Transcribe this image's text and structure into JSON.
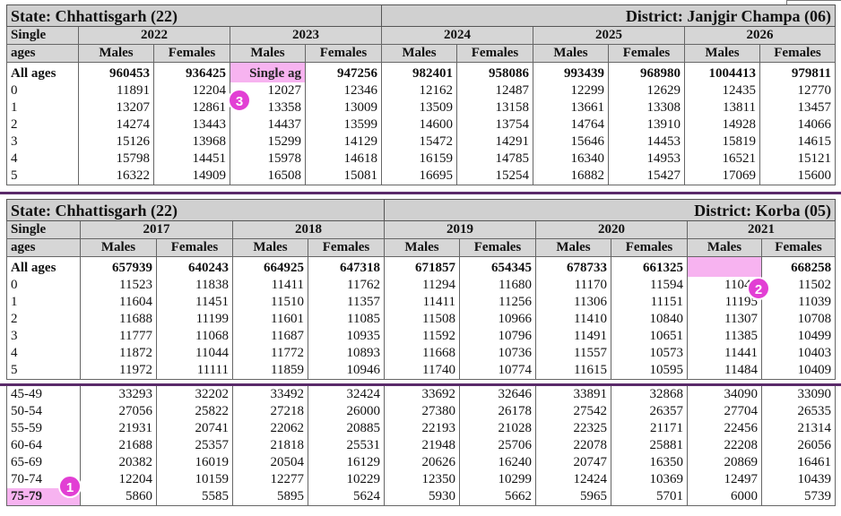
{
  "section1": {
    "state": "State: Chhattisgarh (22)",
    "district": "District: Janjgir Champa (06)",
    "single": "Single",
    "ages": "ages",
    "years": [
      "2022",
      "2023",
      "2024",
      "2025",
      "2026"
    ],
    "males": "Males",
    "females": "Females",
    "rows": [
      [
        "All ages",
        "960453",
        "936425",
        "Single ag",
        "947256",
        "982401",
        "958086",
        "993439",
        "968980",
        "1004413",
        "979811"
      ],
      [
        "0",
        "11891",
        "12204",
        "12027",
        "12346",
        "12162",
        "12487",
        "12299",
        "12629",
        "12435",
        "12770"
      ],
      [
        "1",
        "13207",
        "12861",
        "13358",
        "13009",
        "13509",
        "13158",
        "13661",
        "13308",
        "13811",
        "13457"
      ],
      [
        "2",
        "14274",
        "13443",
        "14437",
        "13599",
        "14600",
        "13754",
        "14764",
        "13910",
        "14928",
        "14066"
      ],
      [
        "3",
        "15126",
        "13968",
        "15299",
        "14129",
        "15472",
        "14291",
        "15646",
        "14453",
        "15819",
        "14615"
      ],
      [
        "4",
        "15798",
        "14451",
        "15978",
        "14618",
        "16159",
        "14785",
        "16340",
        "14953",
        "16521",
        "15121"
      ],
      [
        "5",
        "16322",
        "14909",
        "16508",
        "15081",
        "16695",
        "15254",
        "16882",
        "15427",
        "17069",
        "15600"
      ]
    ]
  },
  "section2": {
    "state": "State: Chhattisgarh (22)",
    "district": "District: Korba (05)",
    "single": "Single",
    "ages": "ages",
    "years": [
      "2017",
      "2018",
      "2019",
      "2020",
      "2021"
    ],
    "males": "Males",
    "females": "Females",
    "rows": [
      [
        "All ages",
        "657939",
        "640243",
        "664925",
        "647318",
        "671857",
        "654345",
        "678733",
        "661325",
        "",
        "668258"
      ],
      [
        "0",
        "11523",
        "11838",
        "11411",
        "11762",
        "11294",
        "11680",
        "11170",
        "11594",
        "11041",
        "11502"
      ],
      [
        "1",
        "11604",
        "11451",
        "11510",
        "11357",
        "11411",
        "11256",
        "11306",
        "11151",
        "11195",
        "11039"
      ],
      [
        "2",
        "11688",
        "11199",
        "11601",
        "11085",
        "11508",
        "10966",
        "11410",
        "10840",
        "11307",
        "10708"
      ],
      [
        "3",
        "11777",
        "11068",
        "11687",
        "10935",
        "11592",
        "10796",
        "11491",
        "10651",
        "11385",
        "10499"
      ],
      [
        "4",
        "11872",
        "11044",
        "11772",
        "10893",
        "11668",
        "10736",
        "11557",
        "10573",
        "11441",
        "10403"
      ],
      [
        "5",
        "11972",
        "11111",
        "11859",
        "10946",
        "11740",
        "10774",
        "11615",
        "10595",
        "11484",
        "10409"
      ]
    ]
  },
  "section3": {
    "rows": [
      [
        "45-49",
        "33293",
        "32202",
        "33492",
        "32424",
        "33692",
        "32646",
        "33891",
        "32868",
        "34090",
        "33090"
      ],
      [
        "50-54",
        "27056",
        "25822",
        "27218",
        "26000",
        "27380",
        "26178",
        "27542",
        "26357",
        "27704",
        "26535"
      ],
      [
        "55-59",
        "21931",
        "20741",
        "22062",
        "20885",
        "22193",
        "21028",
        "22325",
        "21171",
        "22456",
        "21314"
      ],
      [
        "60-64",
        "21688",
        "25357",
        "21818",
        "25531",
        "21948",
        "25706",
        "22078",
        "25881",
        "22208",
        "26056"
      ],
      [
        "65-69",
        "20382",
        "16019",
        "20504",
        "16129",
        "20626",
        "16240",
        "20747",
        "16350",
        "20869",
        "16461"
      ],
      [
        "70-74",
        "12204",
        "10159",
        "12277",
        "10229",
        "12350",
        "10299",
        "12424",
        "10369",
        "12497",
        "10439"
      ],
      [
        "75-79",
        "5860",
        "5585",
        "5895",
        "5624",
        "5930",
        "5662",
        "5965",
        "5701",
        "6000",
        "5739"
      ]
    ]
  },
  "markers": [
    "1",
    "2",
    "3"
  ],
  "colors": {
    "highlight": "#f7b3f0",
    "marker": "#e23fd4",
    "divider": "#5a2a6a",
    "header_bg": "#d0d0d0"
  }
}
